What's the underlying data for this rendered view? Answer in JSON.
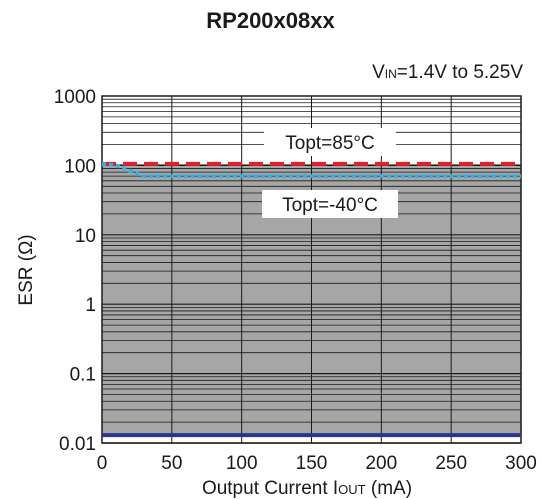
{
  "chart_data": {
    "type": "line",
    "title": "RP200x08xx",
    "condition": {
      "prefix": "V",
      "sub": "IN",
      "rest": "=1.4V to 5.25V"
    },
    "xlabel": {
      "prefix": "Output Current I",
      "sub": "OUT",
      "rest": " (mA)"
    },
    "ylabel": "ESR (Ω)",
    "xlim": [
      0,
      300
    ],
    "ylim": [
      0.01,
      1000
    ],
    "yscale": "log",
    "x_ticks": [
      "0",
      "50",
      "100",
      "150",
      "200",
      "250",
      "300"
    ],
    "y_ticks": [
      "0.01",
      "0.1",
      "1",
      "10",
      "100",
      "1000"
    ],
    "grid": true,
    "stable_region": {
      "color": "#a6a6a6",
      "lower": 0.013
    },
    "series": [
      {
        "name": "Topt=85°C",
        "color": "#e0202a",
        "style": "dashed",
        "x": [
          0,
          300
        ],
        "y": [
          105,
          105
        ]
      },
      {
        "name": "Topt=-40°C",
        "color": "#2cb4e6",
        "style": "dotted",
        "x": [
          0,
          10,
          30,
          50,
          100,
          150,
          200,
          250,
          300
        ],
        "y": [
          105,
          100,
          70,
          70,
          70,
          70,
          70,
          70,
          70
        ]
      }
    ],
    "lower_boundary": {
      "color": "#27378e",
      "y": 0.013
    }
  }
}
